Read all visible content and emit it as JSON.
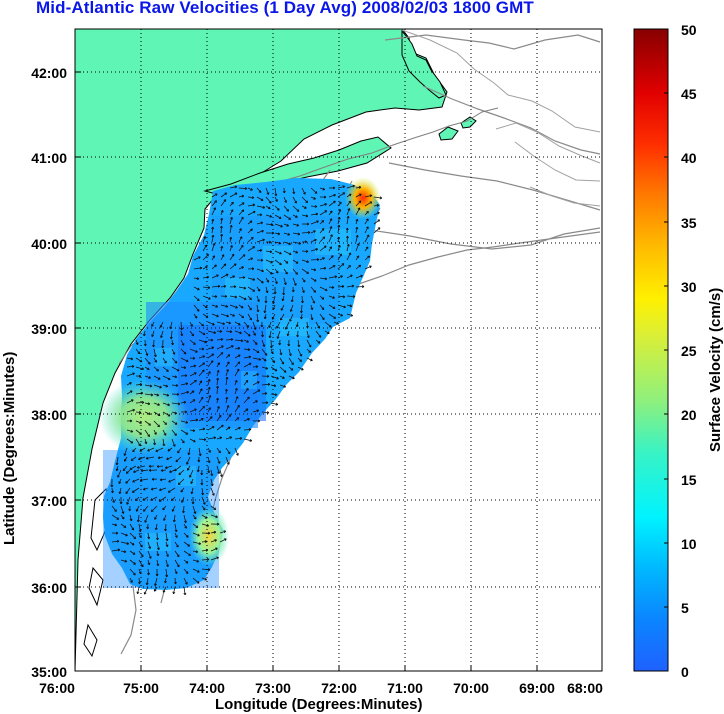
{
  "title": "Mid-Atlantic Raw Velocities (1 Day Avg) 2008/02/03 1800 GMT",
  "map": {
    "xlabel": "Longitude (Degrees:Minutes)",
    "ylabel": "Latitude (Degrees:Minutes)",
    "x_ticks": [
      "76:00",
      "75:00",
      "74:00",
      "73:00",
      "72:00",
      "71:00",
      "70:00",
      "69:00",
      "68:00"
    ],
    "y_ticks": [
      "35:00",
      "36:00",
      "37:00",
      "38:00",
      "39:00",
      "40:00",
      "41:00",
      "42:00"
    ],
    "xlim": [
      -76,
      -68
    ],
    "ylim": [
      35,
      42.5
    ],
    "grid": "dotted",
    "land_color": "#5ff5b5",
    "land_outline_color": "#000000",
    "coast_detail_color": "#8a8a8a"
  },
  "colorbar": {
    "label": "Surface Velocity (cm/s)",
    "ticks": [
      "0",
      "5",
      "10",
      "15",
      "20",
      "25",
      "30",
      "35",
      "40",
      "45",
      "50"
    ],
    "range": [
      0,
      50
    ],
    "colormap": "jet"
  },
  "icons": {
    "arrow_marker": "velocity-arrow"
  }
}
